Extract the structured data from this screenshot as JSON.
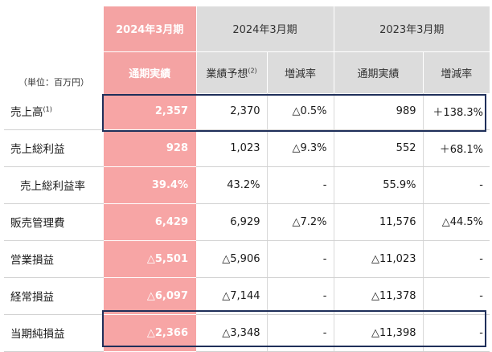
{
  "table": {
    "unit_label": "（単位：百万円）",
    "header_groups": [
      "2024年3月期",
      "2024年3月期",
      "2023年3月期"
    ],
    "sub_headers": [
      {
        "label": "通期実績",
        "sup": ""
      },
      {
        "label": "業績予想",
        "sup": "(2)"
      },
      {
        "label": "増減率",
        "sup": ""
      },
      {
        "label": "通期実績",
        "sup": ""
      },
      {
        "label": "増減率",
        "sup": ""
      }
    ],
    "rows": [
      {
        "label": "売上高",
        "sup": "(1)",
        "indent": false,
        "values": [
          "2,357",
          "2,370",
          "△0.5%",
          "989",
          "＋138.3%"
        ]
      },
      {
        "label": "売上総利益",
        "sup": "",
        "indent": false,
        "values": [
          "928",
          "1,023",
          "△9.3%",
          "552",
          "＋68.1%"
        ]
      },
      {
        "label": "売上総利益率",
        "sup": "",
        "indent": true,
        "values": [
          "39.4%",
          "43.2%",
          "-",
          "55.9%",
          "-"
        ]
      },
      {
        "label": "販売管理費",
        "sup": "",
        "indent": false,
        "values": [
          "6,429",
          "6,929",
          "△7.2%",
          "11,576",
          "△44.5%"
        ]
      },
      {
        "label": "営業損益",
        "sup": "",
        "indent": false,
        "values": [
          "△5,501",
          "△5,906",
          "-",
          "△11,023",
          "-"
        ]
      },
      {
        "label": "経常損益",
        "sup": "",
        "indent": false,
        "values": [
          "△6,097",
          "△7,144",
          "-",
          "△11,378",
          "-"
        ]
      },
      {
        "label": "当期純損益",
        "sup": "",
        "indent": false,
        "values": [
          "△2,366",
          "△3,348",
          "-",
          "△11,398",
          "-"
        ]
      }
    ]
  },
  "colors": {
    "actual_highlight": "#f4a3a3",
    "header_grey": "#dcdcdc",
    "highlight_border": "#1f2f5a"
  }
}
